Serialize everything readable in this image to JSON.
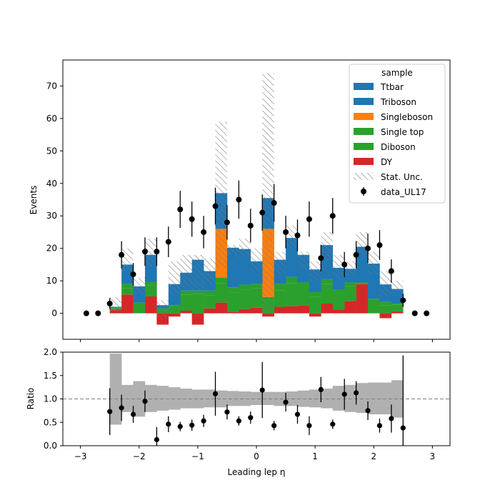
{
  "chart_data": [
    {
      "type": "bar",
      "subtype": "stacked-histogram",
      "ylabel": "Events",
      "ylim": [
        -8,
        78
      ],
      "xlim": [
        -3.3,
        3.3
      ],
      "yticks": [
        "0",
        "10",
        "20",
        "30",
        "40",
        "50",
        "60",
        "70"
      ],
      "xticks": [
        "−3",
        "−2",
        "−1",
        "0",
        "1",
        "2",
        "3"
      ],
      "bin_edges": [
        -2.5,
        -2.3,
        -2.1,
        -1.9,
        -1.7,
        -1.5,
        -1.3,
        -1.1,
        -0.9,
        -0.7,
        -0.5,
        -0.3,
        -0.1,
        0.1,
        0.3,
        0.5,
        0.7,
        0.9,
        1.1,
        1.3,
        1.5,
        1.7,
        1.9,
        2.1,
        2.3,
        2.5
      ],
      "legend_title": "sample",
      "legend_placement": "top-right",
      "series": [
        {
          "name": "DY",
          "color": "#d62728",
          "values": [
            1.0,
            5.8,
            0.0,
            5.2,
            -3.5,
            -1.0,
            0.8,
            -3.5,
            1.5,
            3.3,
            0.5,
            1.3,
            1.7,
            -1.0,
            2.0,
            2.2,
            2.5,
            -1.0,
            3.0,
            1.2,
            3.8,
            9.0,
            0.0,
            -1.5,
            0.6
          ]
        },
        {
          "name": "Diboson",
          "color": "#2ca02c",
          "values": [
            0.5,
            2.0,
            3.0,
            3.5,
            1.0,
            2.0,
            5.0,
            6.0,
            4.0,
            6.0,
            6.0,
            6.0,
            6.0,
            4.0,
            5.0,
            7.0,
            6.0,
            5.0,
            6.0,
            5.0,
            4.5,
            0.0,
            3.0,
            2.5,
            2.0
          ]
        },
        {
          "name": "Single top",
          "color": "#2ca02c",
          "values": [
            0.3,
            1.2,
            0.3,
            1.0,
            0.5,
            0.5,
            1.2,
            1.0,
            1.5,
            1.7,
            1.5,
            1.5,
            1.3,
            1.0,
            2.0,
            2.0,
            1.0,
            1.5,
            1.5,
            1.0,
            1.2,
            0.5,
            1.5,
            1.0,
            0.5
          ]
        },
        {
          "name": "Singleboson",
          "color": "#ff7f0e",
          "values": [
            0.0,
            0.0,
            0.0,
            0.0,
            0.0,
            0.0,
            0.0,
            0.0,
            0.0,
            15.0,
            0.0,
            0.0,
            0.0,
            21.0,
            0.0,
            0.0,
            0.0,
            0.0,
            0.0,
            0.0,
            0.0,
            0.0,
            0.0,
            0.0,
            0.0
          ]
        },
        {
          "name": "Triboson",
          "color": "#1f77b4",
          "values": [
            0.0,
            0.0,
            0.0,
            0.0,
            0.0,
            0.0,
            0.0,
            0.0,
            0.0,
            0.0,
            0.0,
            0.0,
            0.0,
            0.0,
            0.0,
            0.0,
            0.0,
            0.0,
            0.0,
            0.0,
            0.0,
            0.0,
            0.0,
            0.0,
            0.0
          ]
        },
        {
          "name": "Ttbar",
          "color": "#1f77b4",
          "values": [
            0.2,
            6.0,
            5.0,
            8.3,
            1.0,
            6.5,
            5.5,
            9.5,
            6.0,
            11.0,
            12.2,
            11.0,
            7.0,
            9.5,
            7.5,
            12.0,
            8.5,
            7.0,
            10.5,
            6.8,
            4.2,
            11.0,
            10.8,
            5.4,
            4.4
          ]
        }
      ],
      "stat_unc": {
        "name": "Stat. Unc.",
        "low": [
          1.0,
          13.0,
          6.0,
          14.0,
          -2.0,
          6.0,
          8.0,
          6.0,
          9.0,
          14.0,
          18.0,
          17.0,
          13.0,
          0.0,
          12.0,
          20.0,
          14.0,
          10.0,
          16.0,
          11.0,
          11.5,
          18.0,
          12.0,
          5.0,
          6.5
        ],
        "high": [
          5.0,
          20.0,
          11.0,
          23.0,
          4.0,
          16.0,
          18.0,
          18.0,
          17.0,
          59.0,
          21.0,
          23.0,
          20.0,
          74.0,
          19.0,
          27.0,
          19.0,
          16.0,
          25.0,
          18.0,
          16.0,
          25.0,
          19.0,
          13.0,
          10.0
        ]
      },
      "data": {
        "name": "data_UL17",
        "x": [
          -2.9,
          -2.7,
          -2.5,
          -2.3,
          -2.1,
          -1.9,
          -1.7,
          -1.5,
          -1.3,
          -1.1,
          -0.9,
          -0.7,
          -0.5,
          -0.3,
          -0.1,
          0.1,
          0.3,
          0.5,
          0.7,
          0.9,
          1.1,
          1.3,
          1.5,
          1.7,
          1.9,
          2.1,
          2.3,
          2.5,
          2.7,
          2.9
        ],
        "y": [
          0,
          0,
          3,
          18,
          12,
          19,
          19,
          22,
          32,
          29,
          25,
          33,
          28,
          35,
          27,
          31,
          34,
          25,
          24,
          29,
          17,
          30,
          15,
          18,
          20,
          21,
          13,
          4,
          0,
          0
        ],
        "err": [
          0,
          0,
          1.7,
          4.2,
          3.5,
          4.4,
          4.4,
          4.7,
          5.7,
          5.4,
          5.0,
          5.7,
          5.3,
          5.9,
          5.2,
          5.6,
          5.8,
          5.0,
          4.9,
          5.4,
          4.1,
          5.5,
          3.9,
          4.2,
          4.5,
          4.6,
          3.6,
          2.0,
          0,
          0
        ]
      }
    },
    {
      "type": "scatter",
      "subtype": "ratio",
      "xlabel": "Leading lep η",
      "ylabel": "Ratio",
      "ylim": [
        0.0,
        2.0
      ],
      "xlim": [
        -3.3,
        3.3
      ],
      "yticks": [
        "0.0",
        "0.5",
        "1.0",
        "1.5",
        "2.0"
      ],
      "xticks": [
        "−3",
        "−2",
        "−1",
        "0",
        "1",
        "2",
        "3"
      ],
      "reference_line": 1.0,
      "band": {
        "low": [
          0.45,
          0.72,
          0.62,
          0.72,
          0.75,
          0.77,
          0.8,
          0.8,
          0.82,
          0.82,
          0.85,
          0.85,
          0.87,
          0.87,
          0.85,
          0.85,
          0.83,
          0.82,
          0.8,
          0.75,
          0.72,
          0.7,
          0.67,
          0.67,
          0.6
        ],
        "high": [
          1.97,
          1.3,
          1.38,
          1.3,
          1.28,
          1.25,
          1.22,
          1.2,
          1.2,
          1.18,
          1.17,
          1.16,
          1.15,
          1.15,
          1.15,
          1.16,
          1.18,
          1.2,
          1.22,
          1.28,
          1.3,
          1.34,
          1.35,
          1.35,
          1.4
        ]
      },
      "points": {
        "x": [
          -2.5,
          -2.3,
          -2.1,
          -1.9,
          -1.7,
          -1.5,
          -1.3,
          -1.1,
          -0.9,
          -0.7,
          -0.5,
          -0.3,
          -0.1,
          0.1,
          0.3,
          0.5,
          0.7,
          0.9,
          1.1,
          1.3,
          1.5,
          1.7,
          1.9,
          2.1,
          2.3,
          2.5
        ],
        "y": [
          0.73,
          0.81,
          0.67,
          0.95,
          0.13,
          0.46,
          0.41,
          0.44,
          0.53,
          1.11,
          0.72,
          0.53,
          0.6,
          1.19,
          0.43,
          0.93,
          0.67,
          0.43,
          1.2,
          0.46,
          1.1,
          1.13,
          0.75,
          0.43,
          0.58,
          0.38
        ],
        "err": [
          0.5,
          0.28,
          0.18,
          0.23,
          0.27,
          0.17,
          0.1,
          0.12,
          0.13,
          0.47,
          0.16,
          0.1,
          0.13,
          0.6,
          0.1,
          0.2,
          0.2,
          0.2,
          0.27,
          0.1,
          0.33,
          0.25,
          0.2,
          0.15,
          0.3,
          1.55
        ]
      }
    }
  ]
}
